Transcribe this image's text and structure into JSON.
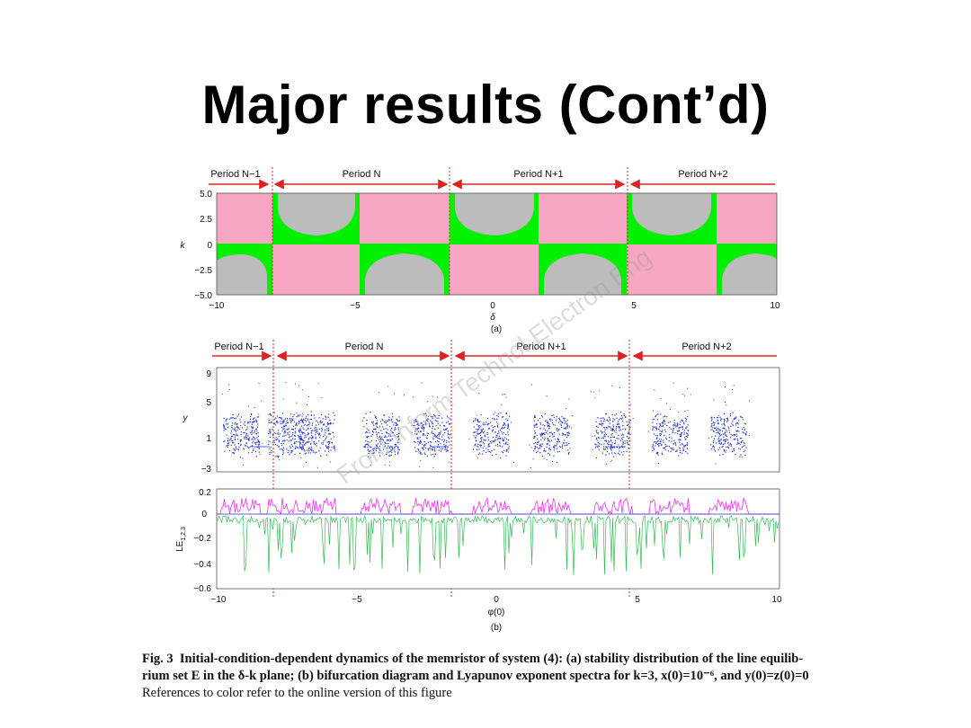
{
  "slide": {
    "title": "Major results (Cont’d)"
  },
  "watermark": "Front Inform Technol Electron Eng",
  "periods": [
    "Period N−1",
    "Period N",
    "Period N+1",
    "Period N+2"
  ],
  "panel_a": {
    "ylabel": "k",
    "xlabel": "δ",
    "sublabel": "(a)",
    "yticks": [
      "5.0",
      "2.5",
      "0",
      "−2.5",
      "−5.0"
    ],
    "xticks": [
      "−10",
      "−5",
      "0",
      "5",
      "10"
    ]
  },
  "panel_b_top": {
    "ylabel": "y",
    "yticks": [
      "9",
      "5",
      "1",
      "−3"
    ]
  },
  "panel_b_bottom": {
    "ylabel": "LE",
    "ylabel_sub": "1,2,3",
    "yticks": [
      "0.2",
      "0",
      "−0.2",
      "−0.4",
      "−0.6"
    ],
    "xticks": [
      "−10",
      "−5",
      "0",
      "5",
      "10"
    ],
    "xlabel": "φ(0)",
    "sublabel": "(b)"
  },
  "colors": {
    "pink": "#f7a6c4",
    "gray": "#bcbcbc",
    "green": "#00f000",
    "blue": "#2233cc",
    "magenta": "#ee33ee",
    "le_green": "#33bb55",
    "red": "#dd2222"
  },
  "caption": {
    "fig_label": "Fig. 3",
    "line1": "Initial-condition-dependent dynamics of the memristor of system (4): (a) stability distribution of the line equilib-",
    "line2": "rium set E in the δ-k plane; (b) bifurcation diagram and Lyapunov exponent spectra for k=3, x(0)=10⁻⁶, and y(0)=z(0)=0",
    "line3": "References to color refer to the online version of this figure"
  }
}
